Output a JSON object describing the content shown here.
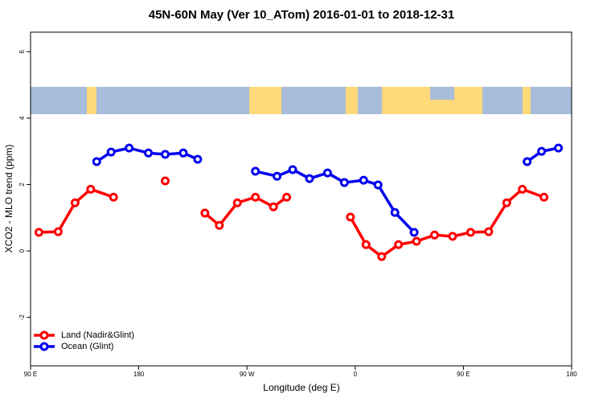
{
  "chart_data": {
    "type": "line",
    "title": "45N-60N May (Ver 10_ATom)   2016-01-01 to 2018-12-31",
    "x_label": "Longitude (deg E)",
    "y_label": "XCO2 - MLO trend (ppm)",
    "xlim": [
      90,
      540
    ],
    "xticks": [
      {
        "value": 90,
        "label": "90 E"
      },
      180,
      {
        "value": 270,
        "label": "90 W"
      },
      {
        "value": 360,
        "label": "0"
      },
      {
        "value": 450,
        "label": "90 E"
      },
      {
        "value": 540,
        "label": "180"
      }
    ],
    "ylim": [
      -3.46,
      6.59
    ],
    "yticks": [
      -2,
      0,
      2,
      4,
      6
    ],
    "legend": "bottomleft",
    "series": [
      {
        "name": "Land (Nadir&Glint)",
        "color": "#ff0000",
        "x": [
          97,
          113,
          127,
          140,
          159,
          null,
          202,
          null,
          235,
          247,
          262,
          277,
          292,
          303,
          null,
          356,
          369,
          382,
          396,
          411,
          426,
          441,
          456,
          471,
          486,
          499,
          517
        ],
        "values": [
          0.56,
          0.58,
          1.45,
          1.86,
          1.62,
          null,
          2.11,
          null,
          1.14,
          0.77,
          1.45,
          1.62,
          1.33,
          1.62,
          null,
          1.02,
          0.19,
          -0.17,
          0.19,
          0.29,
          0.48,
          0.44,
          0.56,
          0.58,
          1.45,
          1.86,
          1.62
        ]
      },
      {
        "name": "Ocean (Glint)",
        "color": "#0000ee",
        "x": [
          145,
          157,
          172,
          188,
          202,
          217,
          229,
          null,
          277,
          295,
          308,
          322,
          337,
          351,
          367,
          379,
          393,
          409,
          null,
          503,
          515,
          529
        ],
        "values": [
          2.69,
          2.98,
          3.1,
          2.95,
          2.91,
          2.95,
          2.76,
          null,
          2.4,
          2.25,
          2.45,
          2.18,
          2.35,
          2.06,
          2.13,
          1.99,
          1.16,
          0.56,
          null,
          2.69,
          3.0,
          3.1
        ]
      }
    ]
  }
}
